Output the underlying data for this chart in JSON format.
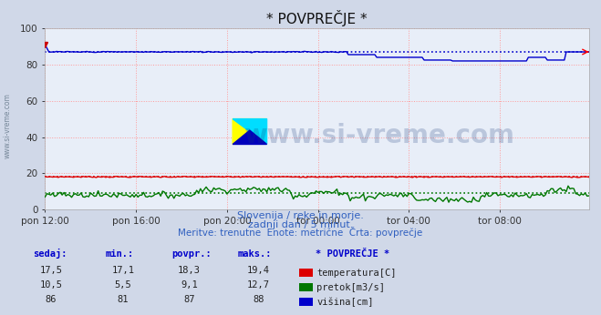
{
  "title": "* POVPREČJE *",
  "background_color": "#d0d8e8",
  "plot_bg_color": "#e8eef8",
  "grid_color": "#ff9999",
  "x_tick_labels": [
    "pon 12:00",
    "pon 16:00",
    "pon 20:00",
    "tor 00:00",
    "tor 04:00",
    "tor 08:00"
  ],
  "x_tick_positions": [
    0,
    48,
    96,
    144,
    192,
    240
  ],
  "n_points": 288,
  "y_min": 0,
  "y_max": 100,
  "y_ticks": [
    0,
    20,
    40,
    60,
    80,
    100
  ],
  "watermark_text": "www.si-vreme.com",
  "watermark_color": "#1a3a7a",
  "watermark_alpha": 0.22,
  "subtitle1": "Slovenija / reke in morje.",
  "subtitle2": "zadnji dan / 5 minut.",
  "subtitle3": "Meritve: trenutne  Enote: metrične  Črta: povprečje",
  "subtitle_color": "#3060c0",
  "temp_color": "#dd0000",
  "flow_color": "#007700",
  "height_color": "#0000cc",
  "legend_header": "* POVPREČJE *",
  "legend_color": "#0000cc",
  "table_header_color": "#0000cc",
  "col_headers": [
    "sedaj:",
    "min.:",
    "povpr.:",
    "maks.:"
  ],
  "temp_row": [
    "17,5",
    "17,1",
    "18,3",
    "19,4"
  ],
  "flow_row": [
    "10,5",
    "5,5",
    "9,1",
    "12,7"
  ],
  "height_row": [
    "86",
    "81",
    "87",
    "88"
  ],
  "temp_label": "temperatura[C]",
  "flow_label": "pretok[m3/s]",
  "height_label": "višina[cm]",
  "temp_avg": 18.3,
  "flow_avg": 9.1,
  "height_avg": 87,
  "logo_yellow": "#ffff00",
  "logo_cyan": "#00ddff",
  "logo_blue": "#0000bb"
}
